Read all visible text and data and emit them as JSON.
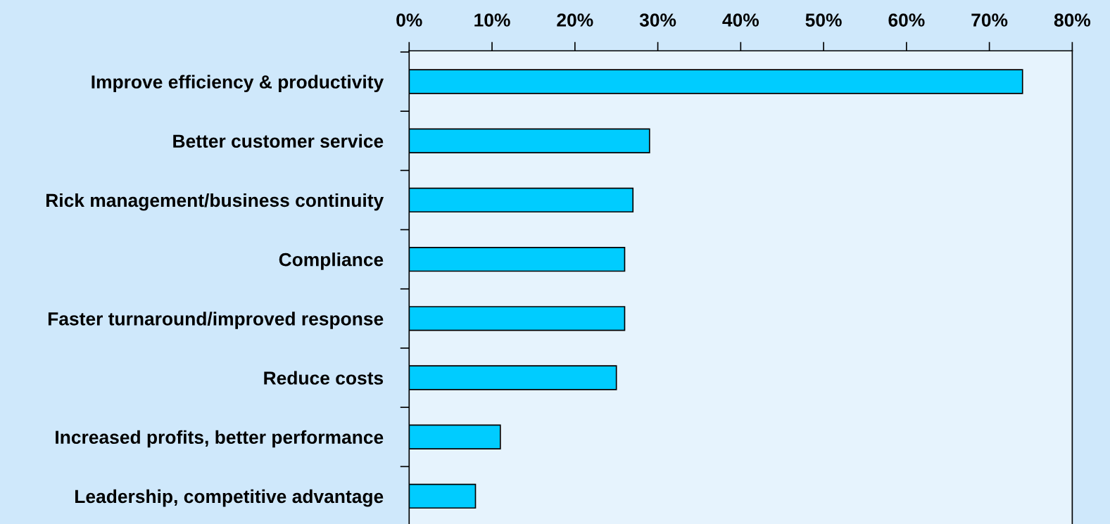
{
  "chart_data": {
    "type": "bar",
    "orientation": "horizontal",
    "categories": [
      "Improve efficiency & productivity",
      "Better customer service",
      "Rick management/business continuity",
      "Compliance",
      "Faster turnaround/improved response",
      "Reduce costs",
      "Increased profits, better performance",
      "Leadership, competitive advantage"
    ],
    "values": [
      74,
      29,
      27,
      26,
      26,
      25,
      11,
      8
    ],
    "color": "#00ccff",
    "xlim": [
      0,
      80
    ],
    "xticks": [
      {
        "value": 0,
        "label": "0%"
      },
      {
        "value": 10,
        "label": "10%"
      },
      {
        "value": 20,
        "label": "20%"
      },
      {
        "value": 30,
        "label": "30%"
      },
      {
        "value": 40,
        "label": "40%"
      },
      {
        "value": 50,
        "label": "50%"
      },
      {
        "value": 60,
        "label": "60%"
      },
      {
        "value": 70,
        "label": "70%"
      },
      {
        "value": 80,
        "label": "80%"
      }
    ],
    "grid": false,
    "legend": false
  }
}
